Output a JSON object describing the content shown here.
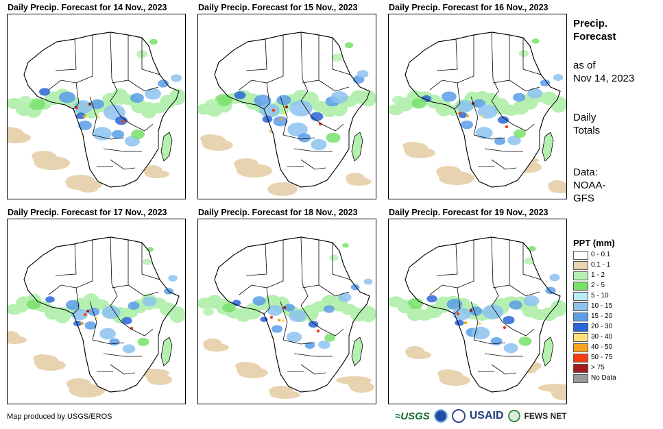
{
  "panels": [
    {
      "title": "Daily Precip. Forecast for 14 Nov., 2023",
      "intensity": 1.0
    },
    {
      "title": "Daily Precip. Forecast for 15 Nov., 2023",
      "intensity": 1.05
    },
    {
      "title": "Daily Precip. Forecast for 16 Nov., 2023",
      "intensity": 0.9
    },
    {
      "title": "Daily Precip. Forecast for 17 Nov., 2023",
      "intensity": 0.85
    },
    {
      "title": "Daily Precip. Forecast for 18 Nov., 2023",
      "intensity": 0.8
    },
    {
      "title": "Daily Precip. Forecast for 19 Nov., 2023",
      "intensity": 0.95
    }
  ],
  "sidebar": {
    "heading_line1": "Precip.",
    "heading_line2": "Forecast",
    "asof_line1": "as of",
    "asof_line2": "Nov 14, 2023",
    "totals_line1": "Daily",
    "totals_line2": "Totals",
    "data_line1": "Data:",
    "data_line2": "NOAA-",
    "data_line3": "GFS"
  },
  "legend": {
    "title": "PPT (mm)",
    "items": [
      {
        "label": "0 - 0.1",
        "color": "#ffffff"
      },
      {
        "label": "0.1 - 1",
        "color": "#e8d3b0"
      },
      {
        "label": "1 - 2",
        "color": "#b5f0b0"
      },
      {
        "label": "2 - 5",
        "color": "#78e06a"
      },
      {
        "label": "5 - 10",
        "color": "#b8eef7"
      },
      {
        "label": "10 - 15",
        "color": "#8cc2f0"
      },
      {
        "label": "15 - 20",
        "color": "#5a9ee8"
      },
      {
        "label": "20 - 30",
        "color": "#2a66d8"
      },
      {
        "label": "30 - 40",
        "color": "#fde27a"
      },
      {
        "label": "40 - 50",
        "color": "#f6a21e"
      },
      {
        "label": "50 - 75",
        "color": "#f43c10"
      },
      {
        "label": "> 75",
        "color": "#a41b1b"
      },
      {
        "label": "No Data",
        "color": "#9a9a9a"
      }
    ]
  },
  "footer": {
    "credit": "Map produced by USGS/EROS",
    "logo_usgs": "≈USGS",
    "logo_usaid": "USAID",
    "logo_fews": "FEWS NET"
  }
}
